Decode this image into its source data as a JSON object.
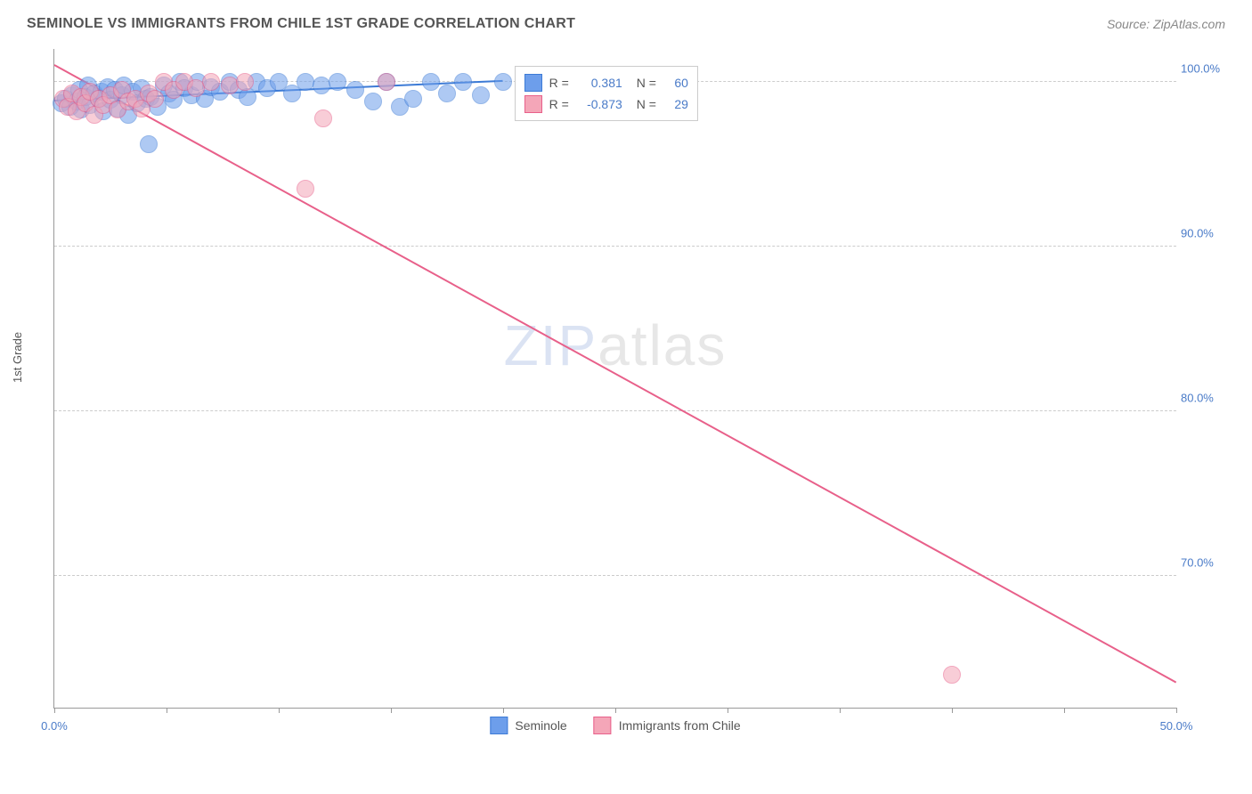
{
  "header": {
    "title": "SEMINOLE VS IMMIGRANTS FROM CHILE 1ST GRADE CORRELATION CHART",
    "source": "Source: ZipAtlas.com"
  },
  "y_axis": {
    "title": "1st Grade"
  },
  "chart": {
    "type": "scatter",
    "background_color": "#ffffff",
    "grid_color": "#cccccc",
    "axis_color": "#999999",
    "xlim": [
      0,
      50
    ],
    "ylim": [
      62,
      102
    ],
    "x_ticks": [
      0,
      5,
      10,
      15,
      20,
      25,
      30,
      35,
      40,
      45,
      50
    ],
    "x_tick_labels": {
      "0": "0.0%",
      "50": "50.0%"
    },
    "y_ticks": [
      70,
      80,
      90,
      100
    ],
    "y_tick_labels": {
      "70": "70.0%",
      "80": "80.0%",
      "90": "90.0%",
      "100": "100.0%"
    },
    "marker_radius": 9,
    "marker_opacity": 0.55,
    "series": [
      {
        "name": "Seminole",
        "fill_color": "#6d9eeb",
        "stroke_color": "#3d7bd6",
        "R": "0.381",
        "N": "60",
        "trend": {
          "x1": 0,
          "y1": 98.8,
          "x2": 20,
          "y2": 100.0,
          "width": 2
        },
        "points": [
          [
            0.3,
            98.7
          ],
          [
            0.5,
            99.0
          ],
          [
            0.7,
            98.5
          ],
          [
            0.8,
            99.2
          ],
          [
            1.0,
            98.8
          ],
          [
            1.1,
            99.5
          ],
          [
            1.2,
            98.3
          ],
          [
            1.4,
            99.1
          ],
          [
            1.5,
            99.8
          ],
          [
            1.6,
            98.6
          ],
          [
            1.8,
            99.3
          ],
          [
            2.0,
            99.0
          ],
          [
            2.1,
            99.4
          ],
          [
            2.2,
            98.2
          ],
          [
            2.4,
            99.7
          ],
          [
            2.5,
            98.9
          ],
          [
            2.7,
            99.5
          ],
          [
            2.8,
            98.4
          ],
          [
            3.0,
            99.2
          ],
          [
            3.1,
            99.8
          ],
          [
            3.3,
            98.0
          ],
          [
            3.5,
            99.4
          ],
          [
            3.7,
            98.7
          ],
          [
            3.9,
            99.6
          ],
          [
            4.1,
            99.0
          ],
          [
            4.3,
            99.1
          ],
          [
            4.6,
            98.5
          ],
          [
            4.9,
            99.8
          ],
          [
            5.1,
            99.3
          ],
          [
            5.3,
            98.9
          ],
          [
            5.6,
            100.0
          ],
          [
            5.8,
            99.6
          ],
          [
            6.1,
            99.2
          ],
          [
            6.4,
            100.0
          ],
          [
            6.7,
            99.0
          ],
          [
            7.0,
            99.7
          ],
          [
            7.4,
            99.4
          ],
          [
            7.8,
            100.0
          ],
          [
            8.2,
            99.5
          ],
          [
            8.6,
            99.1
          ],
          [
            9.0,
            100.0
          ],
          [
            9.5,
            99.6
          ],
          [
            10.0,
            100.0
          ],
          [
            10.6,
            99.3
          ],
          [
            11.2,
            100.0
          ],
          [
            11.9,
            99.8
          ],
          [
            12.6,
            100.0
          ],
          [
            13.4,
            99.5
          ],
          [
            14.2,
            98.8
          ],
          [
            14.8,
            100.0
          ],
          [
            15.4,
            98.5
          ],
          [
            16.0,
            99.0
          ],
          [
            16.8,
            100.0
          ],
          [
            17.5,
            99.3
          ],
          [
            18.2,
            100.0
          ],
          [
            19.0,
            99.2
          ],
          [
            20.0,
            100.0
          ],
          [
            4.2,
            96.2
          ],
          [
            26.5,
            100.0
          ],
          [
            27.5,
            100.0
          ]
        ]
      },
      {
        "name": "Immigrants from Chile",
        "fill_color": "#f4a6b8",
        "stroke_color": "#e8608a",
        "R": "-0.873",
        "N": "29",
        "trend": {
          "x1": 0,
          "y1": 101.0,
          "x2": 50,
          "y2": 63.5,
          "width": 2
        },
        "points": [
          [
            0.4,
            99.0
          ],
          [
            0.6,
            98.5
          ],
          [
            0.8,
            99.3
          ],
          [
            1.0,
            98.2
          ],
          [
            1.2,
            99.1
          ],
          [
            1.4,
            98.7
          ],
          [
            1.6,
            99.4
          ],
          [
            1.8,
            98.0
          ],
          [
            2.0,
            99.0
          ],
          [
            2.2,
            98.6
          ],
          [
            2.5,
            99.2
          ],
          [
            2.8,
            98.3
          ],
          [
            3.0,
            99.5
          ],
          [
            3.3,
            98.8
          ],
          [
            3.6,
            99.0
          ],
          [
            3.9,
            98.4
          ],
          [
            4.2,
            99.3
          ],
          [
            4.5,
            99.0
          ],
          [
            4.9,
            100.0
          ],
          [
            5.3,
            99.5
          ],
          [
            5.8,
            100.0
          ],
          [
            6.3,
            99.6
          ],
          [
            7.0,
            100.0
          ],
          [
            7.8,
            99.8
          ],
          [
            8.5,
            100.0
          ],
          [
            12.0,
            97.8
          ],
          [
            14.8,
            100.0
          ],
          [
            11.2,
            93.5
          ],
          [
            40.0,
            64.0
          ]
        ]
      }
    ]
  },
  "legend_stats": {
    "R_label": "R =",
    "N_label": "N ="
  },
  "bottom_legend": {
    "series1": "Seminole",
    "series2": "Immigrants from Chile"
  },
  "watermark": {
    "part1": "ZIP",
    "part2": "atlas"
  }
}
